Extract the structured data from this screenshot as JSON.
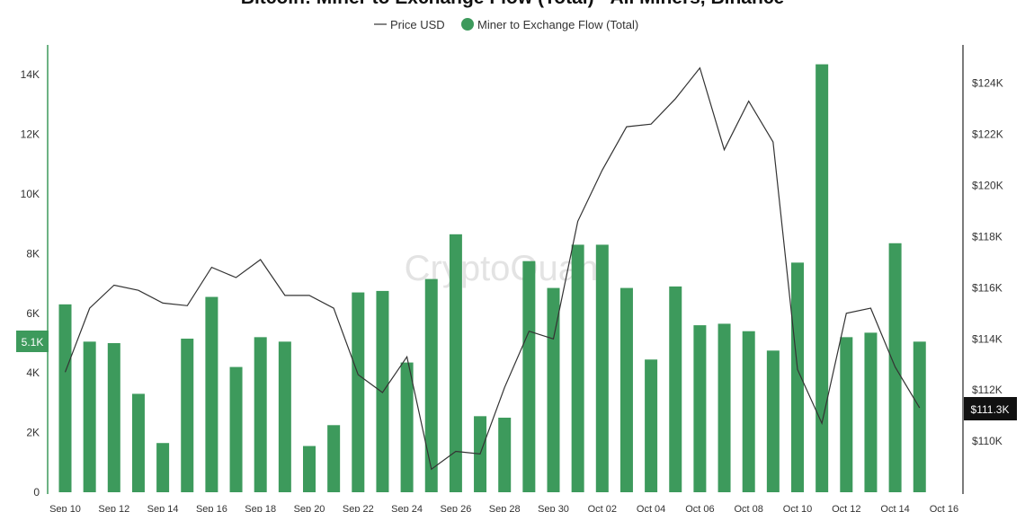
{
  "chart_data": {
    "type": "bar",
    "title": "Bitcoin: Miner to Exchange Flow (Total) - All Miners, Binance",
    "watermark": "CryptoQuant",
    "legend_position": "top-center",
    "grid": false,
    "y_left": {
      "min": 0,
      "max": 15000,
      "ticks": [
        0,
        2000,
        4000,
        6000,
        8000,
        10000,
        12000,
        14000
      ],
      "tick_labels": [
        "0",
        "2K",
        "4K",
        "6K",
        "8K",
        "10K",
        "12K",
        "14K"
      ]
    },
    "y_right": {
      "min": 108000,
      "max": 125500,
      "ticks": [
        110000,
        112000,
        114000,
        116000,
        118000,
        120000,
        122000,
        124000
      ],
      "tick_labels": [
        "$110K",
        "$112K",
        "$114K",
        "$116K",
        "$118K",
        "$120K",
        "$122K",
        "$124K"
      ]
    },
    "x_tick_labels": [
      "Sep 10",
      "Sep 12",
      "Sep 14",
      "Sep 16",
      "Sep 18",
      "Sep 20",
      "Sep 22",
      "Sep 24",
      "Sep 26",
      "Sep 28",
      "Sep 30",
      "Oct 02",
      "Oct 04",
      "Oct 06",
      "Oct 08",
      "Oct 10",
      "Oct 12",
      "Oct 14",
      "Oct 16"
    ],
    "categories": [
      "Sep 10",
      "Sep 11",
      "Sep 12",
      "Sep 13",
      "Sep 14",
      "Sep 15",
      "Sep 16",
      "Sep 17",
      "Sep 18",
      "Sep 19",
      "Sep 20",
      "Sep 21",
      "Sep 22",
      "Sep 23",
      "Sep 24",
      "Sep 25",
      "Sep 26",
      "Sep 27",
      "Sep 28",
      "Sep 29",
      "Sep 30",
      "Oct 01",
      "Oct 02",
      "Oct 03",
      "Oct 04",
      "Oct 05",
      "Oct 06",
      "Oct 07",
      "Oct 08",
      "Oct 09",
      "Oct 10",
      "Oct 11",
      "Oct 12",
      "Oct 13",
      "Oct 14",
      "Oct 15"
    ],
    "series": [
      {
        "name": "Miner to Exchange Flow (Total)",
        "type": "bar",
        "axis": "left",
        "color": "#3d9a5c",
        "values": [
          6300,
          5050,
          5000,
          3300,
          1650,
          5150,
          6550,
          4200,
          5200,
          5050,
          1550,
          2250,
          6700,
          6750,
          4350,
          7150,
          8650,
          2550,
          2500,
          7750,
          6850,
          8300,
          8300,
          6850,
          4450,
          6900,
          5600,
          5650,
          5400,
          4750,
          7700,
          14350,
          5200,
          5350,
          8350,
          5050
        ]
      },
      {
        "name": "Price USD",
        "type": "line",
        "axis": "right",
        "color": "#333333",
        "values": [
          112700,
          115200,
          116100,
          115900,
          115400,
          115300,
          116800,
          116400,
          117100,
          115700,
          115700,
          115200,
          112600,
          111900,
          113300,
          108900,
          109600,
          109500,
          112100,
          114300,
          114000,
          118600,
          120600,
          122300,
          122400,
          123400,
          124600,
          121400,
          123300,
          121700,
          112800,
          110700,
          115000,
          115200,
          112900,
          111300
        ]
      }
    ],
    "last_value_badges": {
      "left": "5.1K",
      "right": "$111.3K"
    }
  }
}
